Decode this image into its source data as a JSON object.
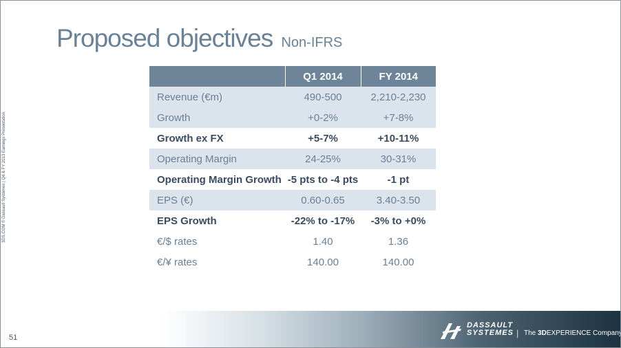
{
  "slide": {
    "title": "Proposed objectives",
    "subtitle": "Non-IFRS",
    "side_note": "3DS.COM © Dassault Systèmes | Q4 & FY 2013 Earnings Presentation",
    "page_number": "51"
  },
  "table": {
    "headers": [
      "",
      "Q1 2014",
      "FY 2014"
    ],
    "rows": [
      {
        "label": "Revenue (€m)",
        "q1": "490-500",
        "fy": "2,210-2,230"
      },
      {
        "label": "Growth",
        "q1": "+0-2%",
        "fy": "+7-8%"
      },
      {
        "label": "Growth ex FX",
        "q1": "+5-7%",
        "fy": "+10-11%"
      },
      {
        "label": "Operating Margin",
        "q1": "24-25%",
        "fy": "30-31%"
      },
      {
        "label": "Operating Margin Growth",
        "q1": "-5 pts to -4 pts",
        "fy": "-1 pt"
      },
      {
        "label": "EPS (€)",
        "q1": "0.60-0.65",
        "fy": "3.40-3.50"
      },
      {
        "label": "EPS Growth",
        "q1": "-22% to -17%",
        "fy": "-3% to +0%"
      },
      {
        "label": "€/$ rates",
        "q1": "1.40",
        "fy": "1.36"
      },
      {
        "label": "€/¥ rates",
        "q1": "140.00",
        "fy": "140.00"
      }
    ]
  },
  "footer": {
    "brand_line1": "DASSAULT",
    "brand_line2": "SYSTEMES",
    "separator": "|",
    "tagline_prefix": "The ",
    "tagline_bold": "3D",
    "tagline_suffix": "EXPERIENCE Company"
  },
  "colors": {
    "title": "#6a8196",
    "header_bg": "#6d8499",
    "row_shade": "#dbe4ec",
    "footer_dark": "#1d3241"
  }
}
